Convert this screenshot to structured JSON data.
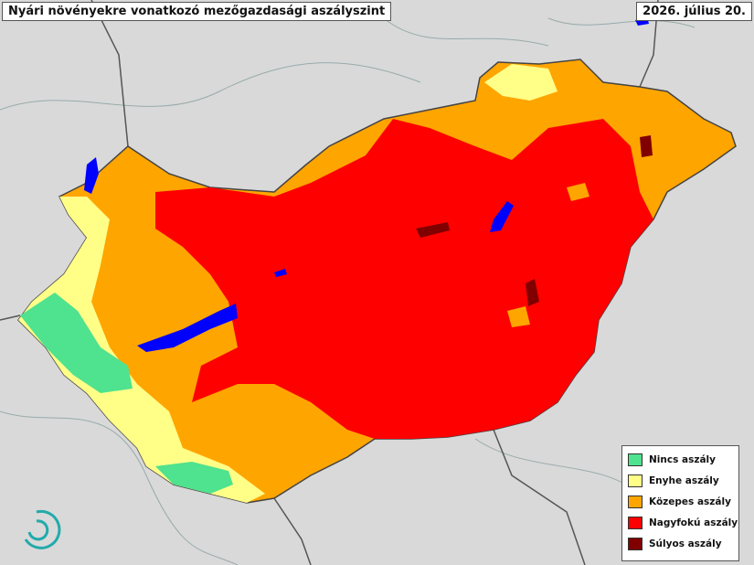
{
  "header": {
    "title": "Nyári növényekre vonatkozó mezőgazdasági aszályszint",
    "date": "2026. július 20."
  },
  "legend": {
    "items": [
      {
        "label": "Nincs aszály",
        "color": "#4fe28f"
      },
      {
        "label": "Enyhe aszály",
        "color": "#ffff88"
      },
      {
        "label": "Közepes aszály",
        "color": "#ffa500"
      },
      {
        "label": "Nagyfokú aszály",
        "color": "#ff0000"
      },
      {
        "label": "Súlyos aszály",
        "color": "#800000"
      }
    ]
  }
}
